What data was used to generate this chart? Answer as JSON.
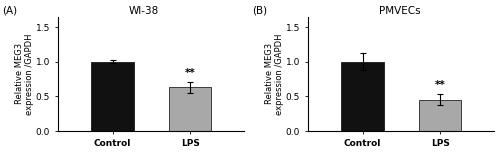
{
  "panel_A": {
    "title": "WI-38",
    "label": "(A)",
    "categories": [
      "Control",
      "LPS"
    ],
    "values": [
      1.0,
      0.63
    ],
    "errors": [
      0.02,
      0.08
    ],
    "bar_colors": [
      "#111111",
      "#a8a8a8"
    ],
    "ylabel": "Relative MEG3\nexpression /GAPDH",
    "ylim": [
      0,
      1.65
    ],
    "yticks": [
      0.0,
      0.5,
      1.0,
      1.5
    ],
    "sig_label": "**",
    "sig_bar_idx": 1
  },
  "panel_B": {
    "title": "PMVECs",
    "label": "(B)",
    "categories": [
      "Control",
      "LPS"
    ],
    "values": [
      1.0,
      0.45
    ],
    "errors": [
      0.12,
      0.08
    ],
    "bar_colors": [
      "#111111",
      "#a8a8a8"
    ],
    "ylabel": "Relative MEG3\nexpression /GAPDH",
    "ylim": [
      0,
      1.65
    ],
    "yticks": [
      0.0,
      0.5,
      1.0,
      1.5
    ],
    "sig_label": "**",
    "sig_bar_idx": 1
  },
  "background_color": "#ffffff",
  "bar_width": 0.55,
  "fontsize_ticks": 6.5,
  "fontsize_ylabel": 6.0,
  "fontsize_title": 7.5,
  "fontsize_label": 7.5,
  "fontsize_sig": 7.5
}
